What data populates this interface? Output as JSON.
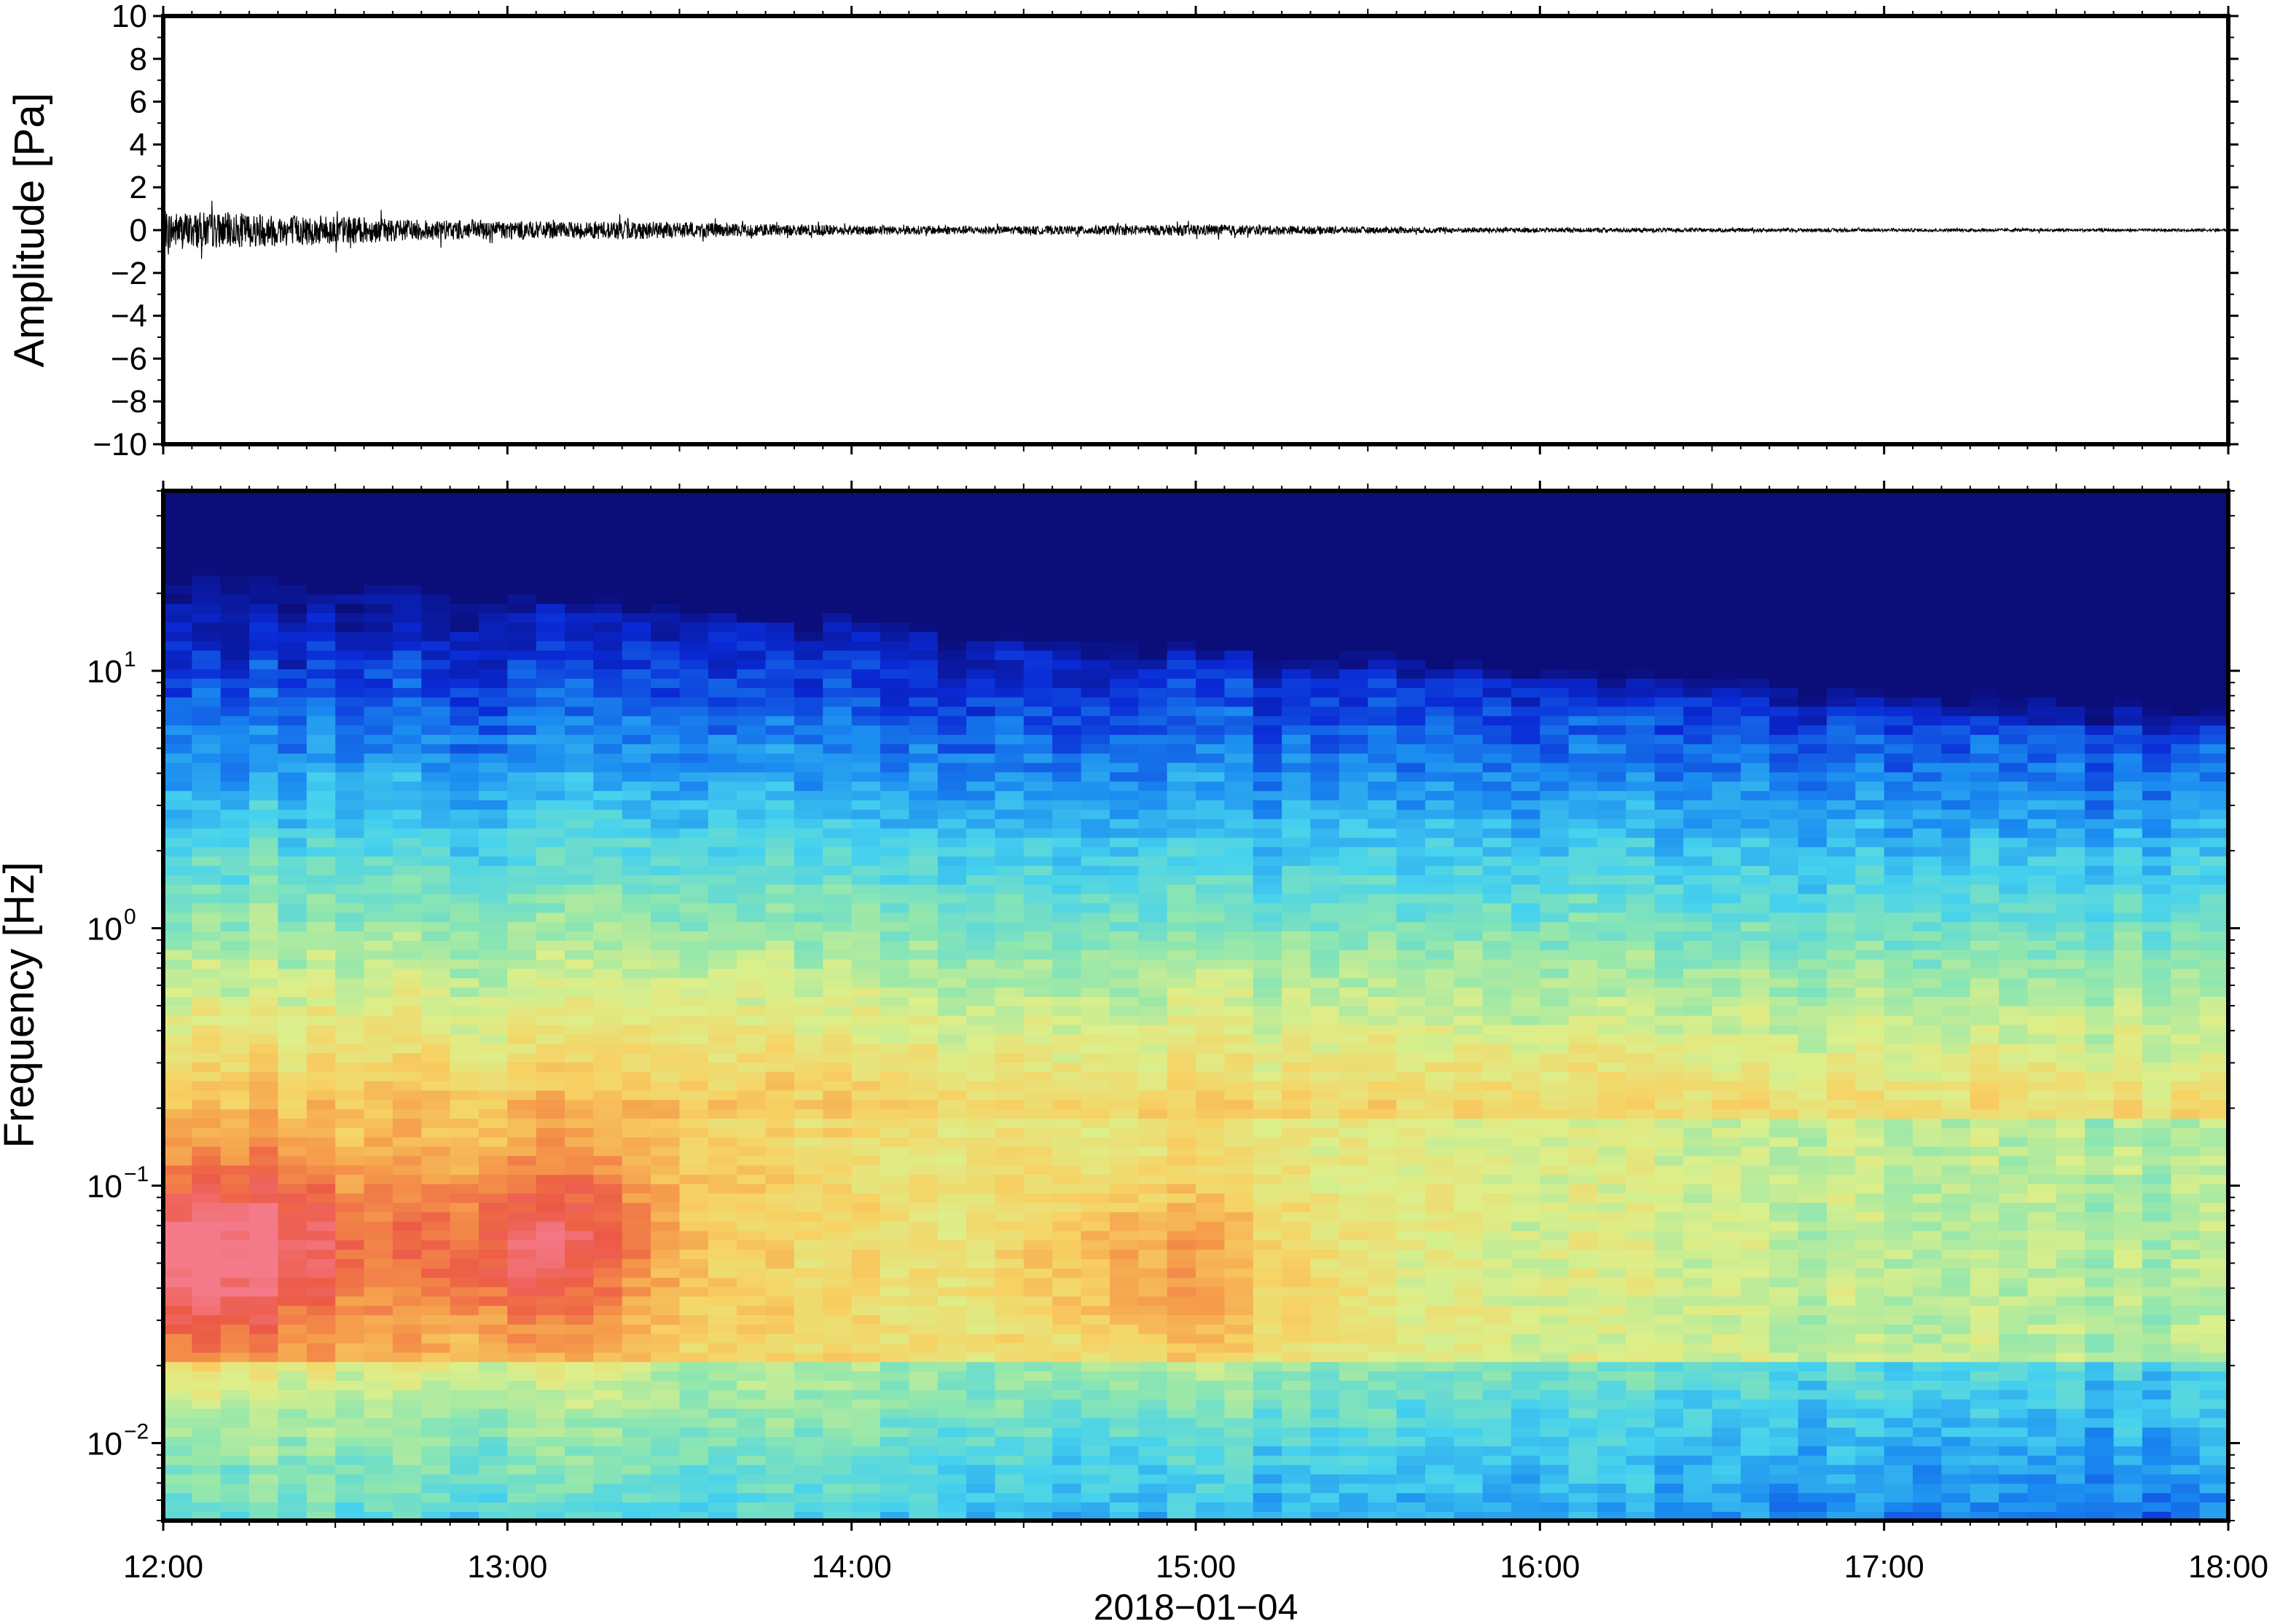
{
  "chart_data": [
    {
      "type": "line",
      "panel": "waveform",
      "ylabel": "Amplitude [Pa]",
      "xlabel": "",
      "ylim": [
        -10,
        10
      ],
      "yticks": [
        10,
        8,
        6,
        4,
        2,
        0,
        -2,
        -4,
        -6,
        -8,
        -10
      ],
      "ytick_labels": [
        "10",
        "8",
        "6",
        "4",
        "2",
        "0",
        "−2",
        "−4",
        "−6",
        "−8",
        "−10"
      ],
      "xlim": [
        "12:00",
        "18:00"
      ],
      "envelope": {
        "description_units": "Pa, peak amplitude of the trace over time (hours)",
        "time": [
          "12:00",
          "12:10",
          "12:20",
          "12:30",
          "12:40",
          "12:50",
          "13:00",
          "13:10",
          "13:20",
          "13:30",
          "13:40",
          "14:00",
          "14:30",
          "15:00",
          "15:30",
          "16:00",
          "16:30",
          "17:00",
          "17:30",
          "18:00"
        ],
        "peak": [
          1.2,
          1.1,
          1.0,
          0.9,
          0.7,
          0.6,
          0.6,
          0.5,
          0.6,
          0.5,
          0.4,
          0.3,
          0.25,
          0.35,
          0.2,
          0.15,
          0.12,
          0.1,
          0.09,
          0.08
        ]
      },
      "grid": false
    },
    {
      "type": "heatmap",
      "panel": "spectrogram",
      "ylabel": "Frequency [Hz]",
      "xlabel": "2018−01−04",
      "yscale": "log",
      "ylim": [
        0.005,
        50
      ],
      "yticks": [
        0.01,
        0.1,
        1,
        10
      ],
      "ytick_base": "10",
      "ytick_exponents": [
        "−2",
        "−1",
        "0",
        "1"
      ],
      "xlim": [
        "12:00",
        "18:00"
      ],
      "xticks": [
        "12:00",
        "13:00",
        "14:00",
        "15:00",
        "16:00",
        "17:00",
        "18:00"
      ],
      "colormap": [
        "#0b0d78",
        "#0a2ad6",
        "#1a8af0",
        "#46d2ee",
        "#8de6b0",
        "#dcef8a",
        "#f7d264",
        "#f59a4a",
        "#ec5a46",
        "#f47a8a"
      ],
      "hot_spots": [
        {
          "time": "12:00",
          "freq": 0.05,
          "level": 0.95
        },
        {
          "time": "12:20",
          "freq": 0.06,
          "level": 0.9
        },
        {
          "time": "13:00",
          "freq": 0.05,
          "level": 0.85
        },
        {
          "time": "13:10",
          "freq": 0.07,
          "level": 0.85
        },
        {
          "time": "14:50",
          "freq": 0.05,
          "level": 0.85
        },
        {
          "time": "15:10",
          "freq": 0.04,
          "level": 0.75
        }
      ],
      "grid": false
    }
  ]
}
